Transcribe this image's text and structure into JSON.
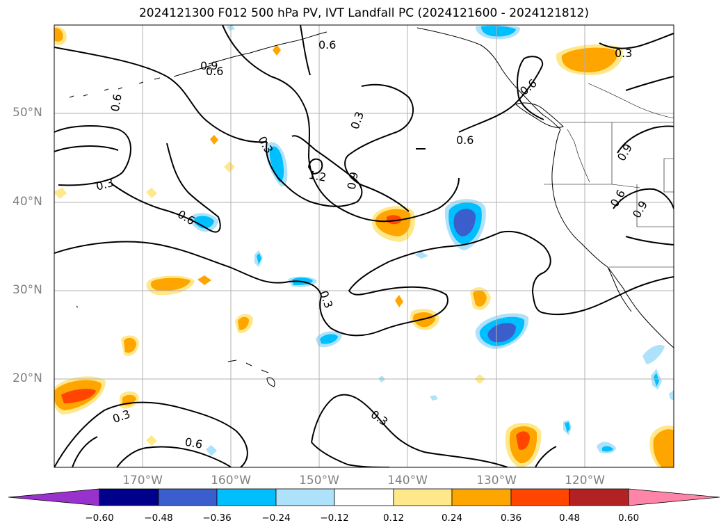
{
  "title": "2024121300 F012 500 hPa PV, IVT Landfall PC (2024121600 - 2024121812)",
  "latitude_labels": [
    "50°N",
    "40°N",
    "30°N",
    "20°N"
  ],
  "longitude_labels": [
    "170°W",
    "160°W",
    "150°W",
    "140°W",
    "130°W",
    "120°W"
  ],
  "colorbar": {
    "tick_labels": [
      "−0.60",
      "−0.48",
      "−0.36",
      "−0.24",
      "−0.12",
      "0.12",
      "0.24",
      "0.36",
      "0.48",
      "0.60"
    ],
    "colors": [
      "#9932CC",
      "#00008B",
      "#3A5FCD",
      "#00BFFF",
      "#ADE2FA",
      "#FFFFFF",
      "#FFE88A",
      "#FFA500",
      "#FF4500",
      "#B22222",
      "#FF85A8"
    ]
  },
  "contour_labels": [
    "0.3",
    "0.6",
    "0.9",
    "1.2"
  ]
}
